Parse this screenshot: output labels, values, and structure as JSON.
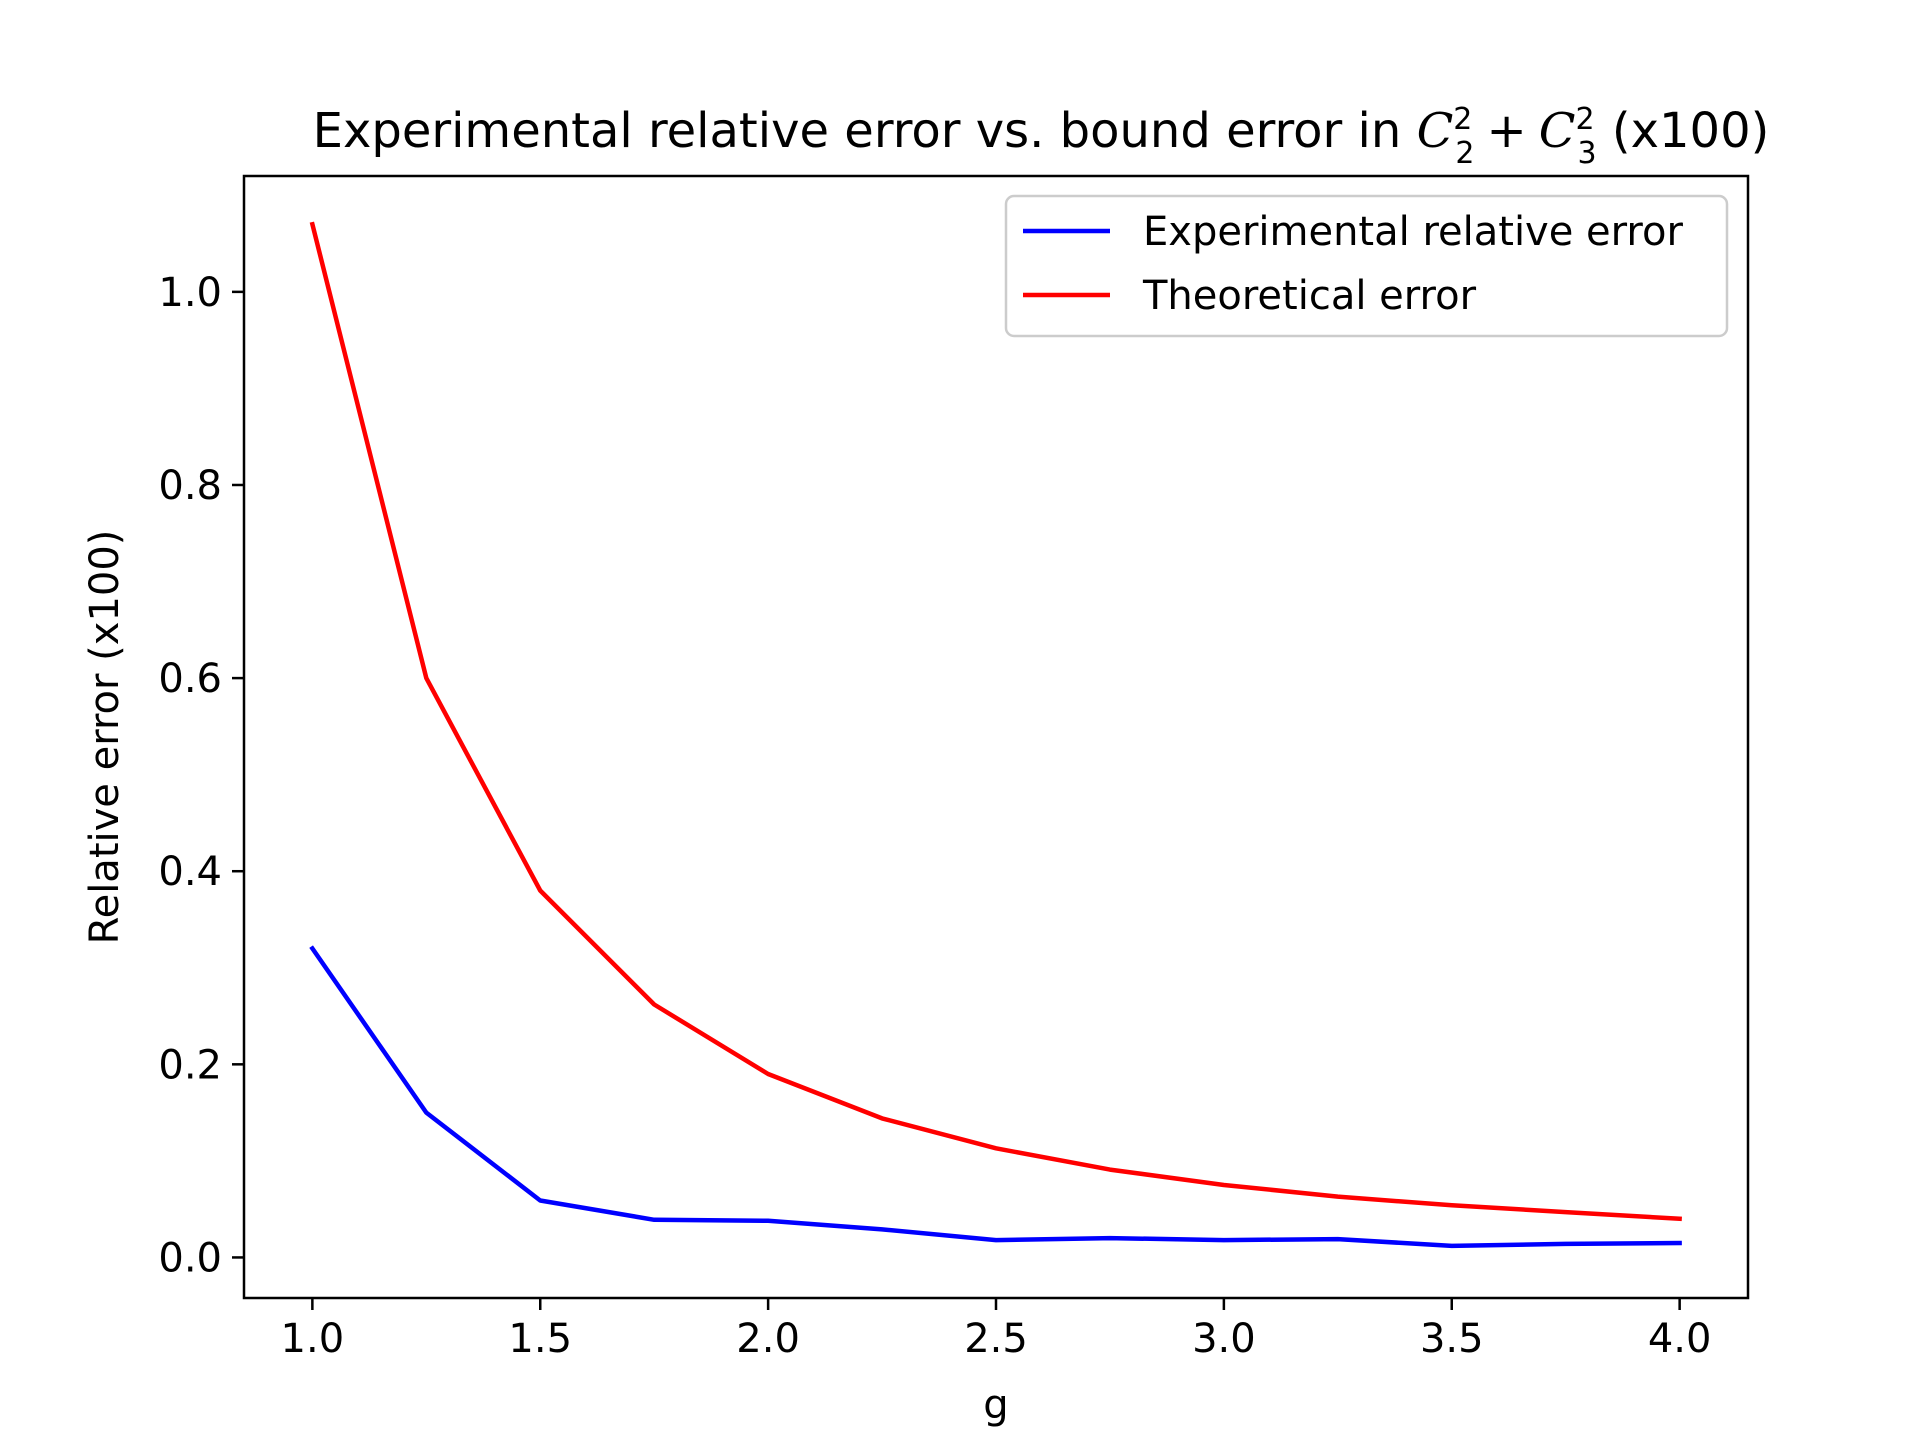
{
  "chart_data": {
    "type": "line",
    "title": {
      "prefix": "Experimental relative error vs. bound error in ",
      "math": {
        "base1": "C",
        "sub1": "2",
        "sup1": "2",
        "op": "+",
        "base2": "C",
        "sub2": "3",
        "sup2": "2"
      },
      "suffix": " (x100)"
    },
    "xlabel": "g",
    "ylabel": "Relative error (x100)",
    "xlim": [
      0.85,
      4.15
    ],
    "ylim": [
      -0.042,
      1.12
    ],
    "xticks": [
      1.0,
      1.5,
      2.0,
      2.5,
      3.0,
      3.5,
      4.0
    ],
    "xtick_labels": [
      "1.0",
      "1.5",
      "2.0",
      "2.5",
      "3.0",
      "3.5",
      "4.0"
    ],
    "yticks": [
      0.0,
      0.2,
      0.4,
      0.6,
      0.8,
      1.0
    ],
    "ytick_labels": [
      "0.0",
      "0.2",
      "0.4",
      "0.6",
      "0.8",
      "1.0"
    ],
    "grid": false,
    "legend_position": "top-right",
    "x": [
      1.0,
      1.25,
      1.5,
      1.75,
      2.0,
      2.25,
      2.5,
      2.75,
      3.0,
      3.25,
      3.5,
      3.75,
      4.0
    ],
    "series": [
      {
        "name": "Experimental relative error",
        "color": "#0000ff",
        "values": [
          0.32,
          0.15,
          0.059,
          0.039,
          0.038,
          0.029,
          0.018,
          0.02,
          0.018,
          0.019,
          0.012,
          0.014,
          0.015
        ]
      },
      {
        "name": "Theoretical error",
        "color": "#ff0000",
        "values": [
          1.07,
          0.6,
          0.38,
          0.262,
          0.19,
          0.144,
          0.113,
          0.091,
          0.075,
          0.063,
          0.054,
          0.047,
          0.04
        ]
      }
    ]
  }
}
